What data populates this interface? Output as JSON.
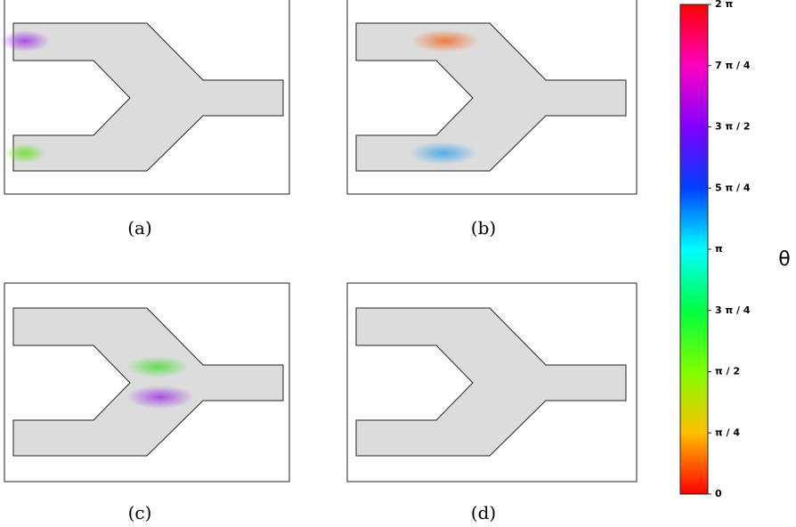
{
  "panels": [
    {
      "caption": "(a)"
    },
    {
      "caption": "(b)"
    },
    {
      "caption": "(c)"
    },
    {
      "caption": "(d)"
    }
  ],
  "colorbar": {
    "label": "θ",
    "lim": [
      0,
      2
    ],
    "ticks": [
      0,
      {
        "value": 0.25,
        "label": "π / 4"
      },
      {
        "value": 0.5,
        "label": "π / 2"
      },
      {
        "value": 0.75,
        "label": "3 π / 4"
      },
      {
        "value": 1,
        "label": "π"
      },
      {
        "value": 1.25,
        "label": "5 π / 4"
      },
      {
        "value": 1.5,
        "label": "3 π / 2"
      },
      {
        "value": 1.75,
        "label": "7 π / 4"
      },
      {
        "value": 2,
        "label": "2 π"
      }
    ]
  }
}
